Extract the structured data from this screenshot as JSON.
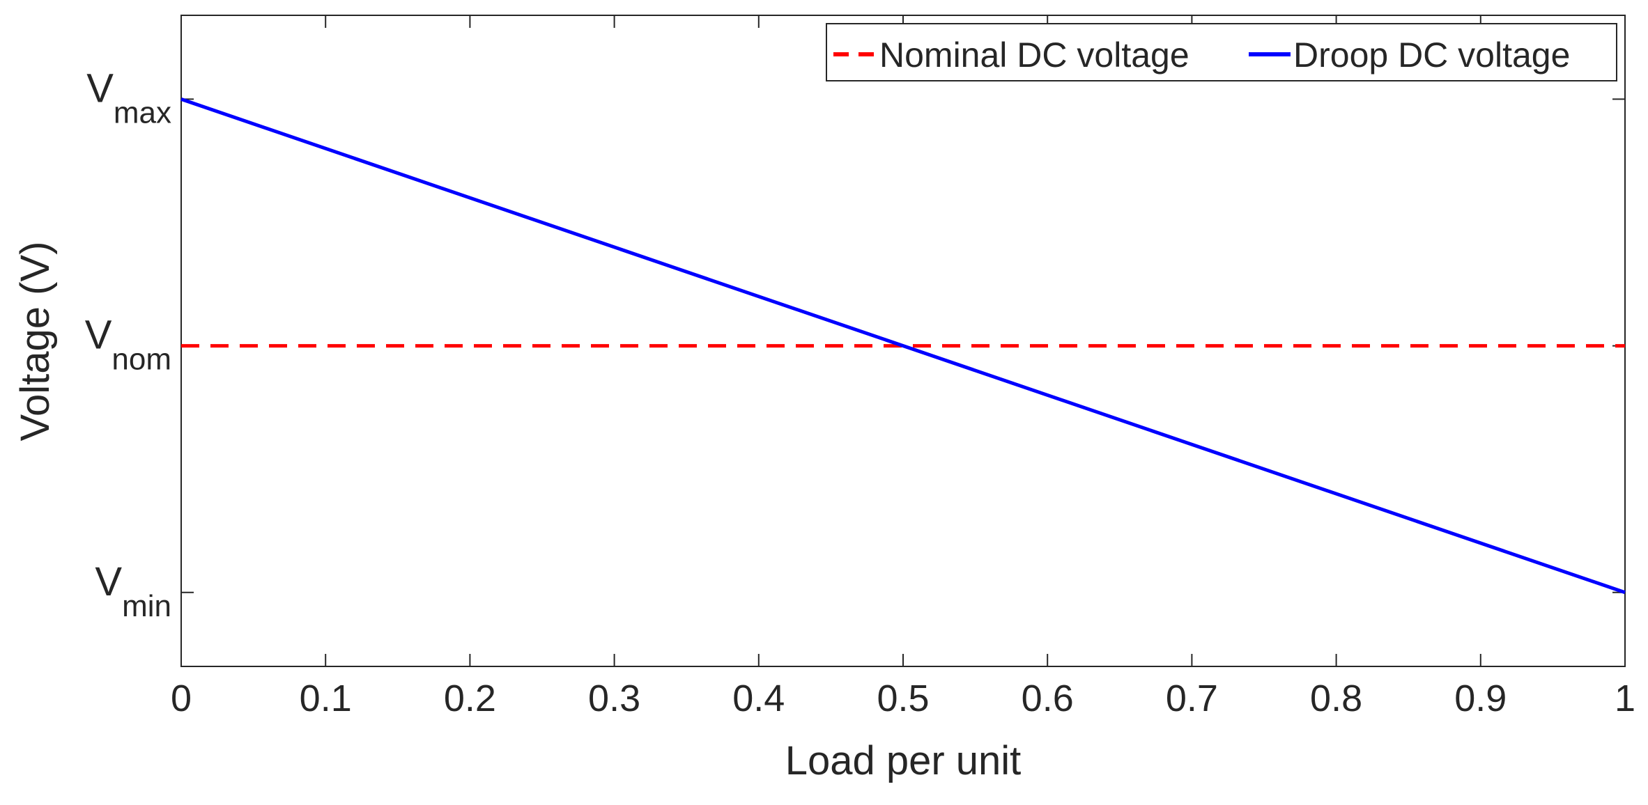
{
  "chart_data": {
    "type": "line",
    "title": "",
    "xlabel": "Load per unit",
    "ylabel": "Voltage (V)",
    "xlim": [
      0,
      1
    ],
    "ylim": [
      -0.15,
      1.17
    ],
    "x_ticks": [
      "0",
      "0.1",
      "0.2",
      "0.3",
      "0.4",
      "0.5",
      "0.6",
      "0.7",
      "0.8",
      "0.9",
      "1"
    ],
    "y_ticks": [
      {
        "value": 0,
        "main": "V",
        "sub": "min"
      },
      {
        "value": 0.5,
        "main": "V",
        "sub": "nom"
      },
      {
        "value": 1,
        "main": "V",
        "sub": "max"
      }
    ],
    "grid": false,
    "legend_position": "top-right",
    "series": [
      {
        "name": "Nominal DC voltage",
        "color": "#ff0000",
        "style": "dashed",
        "x": [
          0,
          1
        ],
        "y": [
          0.5,
          0.5
        ]
      },
      {
        "name": "Droop DC voltage",
        "color": "#0000ff",
        "style": "solid",
        "x": [
          0,
          1
        ],
        "y": [
          1,
          0
        ]
      }
    ]
  }
}
